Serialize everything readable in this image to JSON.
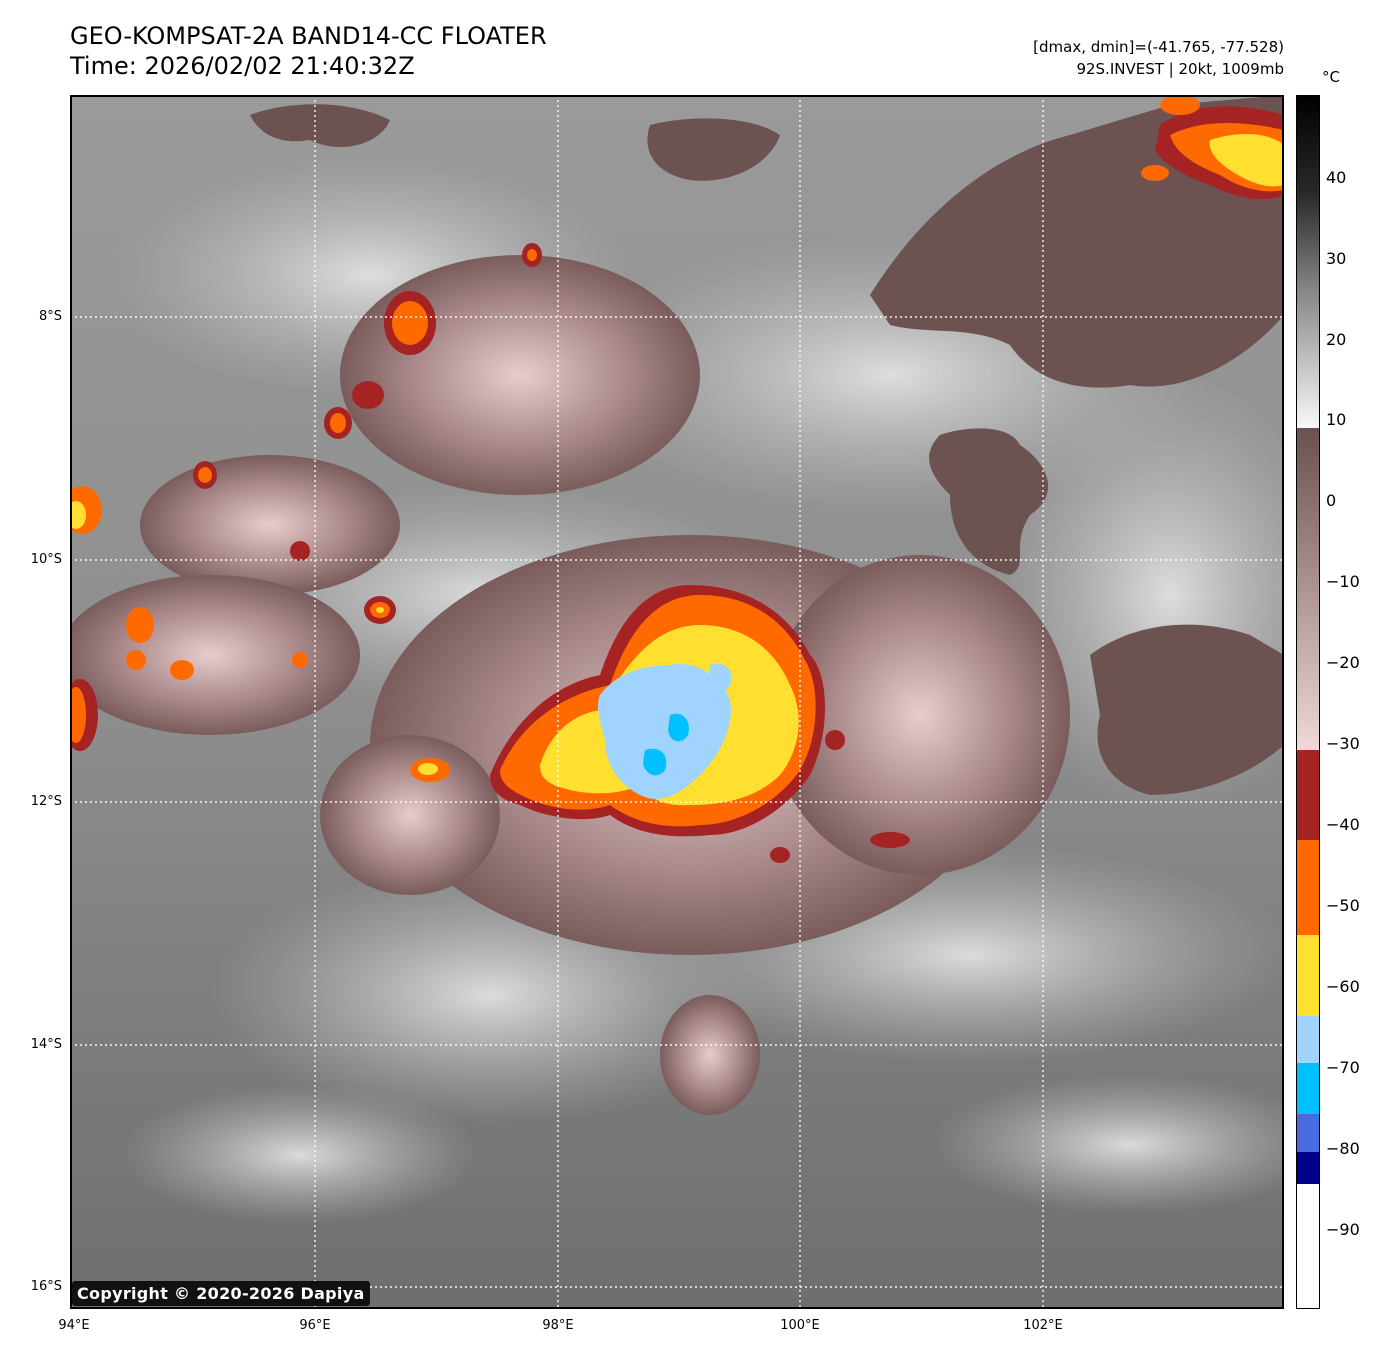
{
  "header": {
    "title": "GEO-KOMPSAT-2A BAND14-CC FLOATER",
    "time": "Time: 2026/02/02 21:40:32Z",
    "range_text": "[dmax, dmin]=(-41.765, -77.528)",
    "storm_text": "92S.INVEST | 20kt, 1009mb"
  },
  "map": {
    "lat_labels": [
      "8°S",
      "10°S",
      "12°S",
      "14°S",
      "16°S"
    ],
    "lon_labels": [
      "94°E",
      "96°E",
      "98°E",
      "100°E",
      "102°E"
    ],
    "copyright": "Copyright © 2020-2026 Dapiya"
  },
  "colorbar": {
    "unit": "°C",
    "ticks": [
      "40",
      "30",
      "20",
      "10",
      "0",
      "−10",
      "−20",
      "−30",
      "−40",
      "−50",
      "−60",
      "−70",
      "−80",
      "−90"
    ],
    "colors": {
      "warm_black": "#000000",
      "gray_20": "#888888",
      "white_10": "#f8f8f8",
      "brown_5": "#6a5050",
      "pink_30": "#f0d8d8",
      "red_40": "#a52323",
      "orange_50": "#ff6a00",
      "yellow_60": "#ffe030",
      "lightblue_70": "#a0d4ff",
      "cyan_75": "#00c0ff",
      "blue_80": "#4a6ae0",
      "navy_85": "#00008b",
      "white_90": "#ffffff"
    }
  }
}
